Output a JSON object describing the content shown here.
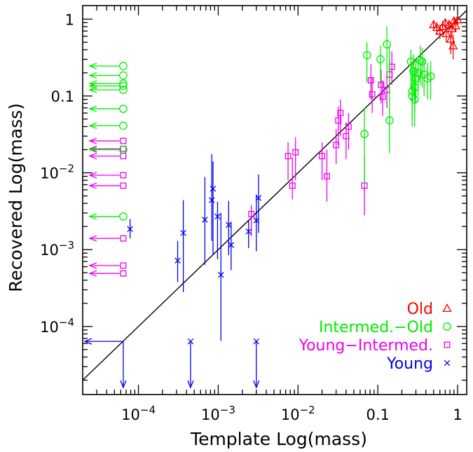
{
  "chart_data": {
    "type": "scatter",
    "xlabel": "Template Log(mass)",
    "ylabel": "Recovered Log(mass)",
    "xscale": "log",
    "yscale": "log",
    "xlim": [
      2e-05,
      1.3
    ],
    "ylim": [
      1.3e-05,
      1.5
    ],
    "grid": false,
    "diagonal_line": "y = x",
    "x_tick_labels": [
      {
        "value": 0.0001,
        "base": "10",
        "exp": "−4"
      },
      {
        "value": 0.001,
        "base": "10",
        "exp": "−3"
      },
      {
        "value": 0.01,
        "base": "10",
        "exp": "−2"
      },
      {
        "value": 0.1,
        "text": "0.1"
      },
      {
        "value": 1,
        "text": "1"
      }
    ],
    "y_tick_labels": [
      {
        "value": 0.0001,
        "base": "10",
        "exp": "−4"
      },
      {
        "value": 0.001,
        "base": "10",
        "exp": "−3"
      },
      {
        "value": 0.01,
        "base": "10",
        "exp": "−2"
      },
      {
        "value": 0.1,
        "text": "0.1"
      },
      {
        "value": 1,
        "text": "1"
      }
    ],
    "legend_position": "bottom-right",
    "series": [
      {
        "name": "Old",
        "marker": "triangle",
        "color": "#ff0000",
        "points": [
          {
            "x": 0.5,
            "y": 0.85,
            "ylo": 0.72,
            "yhi": 0.98
          },
          {
            "x": 0.55,
            "y": 0.78,
            "ylo": 0.62,
            "yhi": 0.92
          },
          {
            "x": 0.6,
            "y": 0.7,
            "ylo": 0.55,
            "yhi": 0.85
          },
          {
            "x": 0.65,
            "y": 0.8,
            "ylo": 0.66,
            "yhi": 0.95
          },
          {
            "x": 0.7,
            "y": 0.9,
            "ylo": 0.76,
            "yhi": 1.0
          },
          {
            "x": 0.72,
            "y": 0.65,
            "ylo": 0.5,
            "yhi": 0.8
          },
          {
            "x": 0.78,
            "y": 0.85,
            "ylo": 0.7,
            "yhi": 0.98
          },
          {
            "x": 0.82,
            "y": 0.55,
            "ylo": 0.35,
            "yhi": 0.7
          },
          {
            "x": 0.85,
            "y": 0.75,
            "ylo": 0.6,
            "yhi": 0.9
          },
          {
            "x": 0.88,
            "y": 0.45,
            "ylo": 0.3,
            "yhi": 0.62
          },
          {
            "x": 0.9,
            "y": 0.95,
            "ylo": 0.8,
            "yhi": 1.05
          },
          {
            "x": 0.95,
            "y": 0.82,
            "ylo": 0.68,
            "yhi": 0.96
          },
          {
            "x": 1.0,
            "y": 0.98,
            "ylo": 0.85,
            "yhi": 1.08
          }
        ],
        "upper_limits": []
      },
      {
        "name": "Intermed.−Old",
        "marker": "circle",
        "color": "#00ee00",
        "points": [
          {
            "x": 0.068,
            "y": 0.032,
            "ylo": 0.0068,
            "yhi": 0.07
          },
          {
            "x": 0.073,
            "y": 0.34,
            "ylo": 0.15,
            "yhi": 0.5
          },
          {
            "x": 0.108,
            "y": 0.3,
            "ylo": 0.14,
            "yhi": 0.45
          },
          {
            "x": 0.13,
            "y": 0.47,
            "ylo": 0.2,
            "yhi": 0.8
          },
          {
            "x": 0.14,
            "y": 0.048,
            "ylo": 0.018,
            "yhi": 0.45
          },
          {
            "x": 0.26,
            "y": 0.28,
            "ylo": 0.12,
            "yhi": 0.4
          },
          {
            "x": 0.27,
            "y": 0.115,
            "ylo": 0.05,
            "yhi": 0.28
          },
          {
            "x": 0.28,
            "y": 0.21,
            "ylo": 0.1,
            "yhi": 0.35
          },
          {
            "x": 0.29,
            "y": 0.09,
            "ylo": 0.04,
            "yhi": 0.2
          },
          {
            "x": 0.3,
            "y": 0.17,
            "ylo": 0.08,
            "yhi": 0.3
          },
          {
            "x": 0.32,
            "y": 0.2,
            "ylo": 0.1,
            "yhi": 0.3
          },
          {
            "x": 0.34,
            "y": 0.29,
            "ylo": 0.14,
            "yhi": 0.45
          },
          {
            "x": 0.36,
            "y": 0.28,
            "ylo": 0.13,
            "yhi": 0.42
          },
          {
            "x": 0.38,
            "y": 0.19,
            "ylo": 0.1,
            "yhi": 0.3
          },
          {
            "x": 0.42,
            "y": 0.17,
            "ylo": 0.09,
            "yhi": 0.27
          },
          {
            "x": 0.46,
            "y": 0.18,
            "ylo": 0.09,
            "yhi": 0.28
          },
          {
            "x": 0.27,
            "y": 0.1,
            "ylo": 0.04,
            "yhi": 0.22
          },
          {
            "x": 0.29,
            "y": 0.13,
            "ylo": 0.06,
            "yhi": 0.23
          }
        ],
        "upper_limits": [
          {
            "x": 6.45e-05,
            "y": 0.245
          },
          {
            "x": 6.45e-05,
            "y": 0.185
          },
          {
            "x": 6.45e-05,
            "y": 0.145
          },
          {
            "x": 6.45e-05,
            "y": 0.135
          },
          {
            "x": 6.45e-05,
            "y": 0.12
          },
          {
            "x": 6.45e-05,
            "y": 0.068
          },
          {
            "x": 6.45e-05,
            "y": 0.041
          },
          {
            "x": 6.45e-05,
            "y": 0.02
          },
          {
            "x": 6.45e-05,
            "y": 0.0027
          }
        ]
      },
      {
        "name": "Young−Intermed.",
        "marker": "square",
        "color": "#ee00ee",
        "points": [
          {
            "x": 0.0026,
            "y": 0.0029,
            "ylo": 0.0015,
            "yhi": 0.0038
          },
          {
            "x": 0.0075,
            "y": 0.0165,
            "ylo": 0.008,
            "yhi": 0.025
          },
          {
            "x": 0.0085,
            "y": 0.0068,
            "ylo": 0.0045,
            "yhi": 0.016
          },
          {
            "x": 0.0093,
            "y": 0.0185,
            "ylo": 0.008,
            "yhi": 0.029
          },
          {
            "x": 0.02,
            "y": 0.0165,
            "ylo": 0.008,
            "yhi": 0.025
          },
          {
            "x": 0.023,
            "y": 0.009,
            "ylo": 0.0042,
            "yhi": 0.02
          },
          {
            "x": 0.03,
            "y": 0.023,
            "ylo": 0.013,
            "yhi": 0.037
          },
          {
            "x": 0.032,
            "y": 0.048,
            "ylo": 0.023,
            "yhi": 0.073
          },
          {
            "x": 0.034,
            "y": 0.06,
            "ylo": 0.03,
            "yhi": 0.09
          },
          {
            "x": 0.04,
            "y": 0.03,
            "ylo": 0.015,
            "yhi": 0.045
          },
          {
            "x": 0.043,
            "y": 0.04,
            "ylo": 0.02,
            "yhi": 0.06
          },
          {
            "x": 0.068,
            "y": 0.0068,
            "ylo": 0.0028,
            "yhi": 0.016
          },
          {
            "x": 0.082,
            "y": 0.16,
            "ylo": 0.09,
            "yhi": 0.26
          },
          {
            "x": 0.085,
            "y": 0.105,
            "ylo": 0.06,
            "yhi": 0.17
          },
          {
            "x": 0.11,
            "y": 0.14,
            "ylo": 0.08,
            "yhi": 0.22
          },
          {
            "x": 0.115,
            "y": 0.098,
            "ylo": 0.055,
            "yhi": 0.16
          },
          {
            "x": 0.14,
            "y": 0.19,
            "ylo": 0.11,
            "yhi": 0.3
          },
          {
            "x": 0.15,
            "y": 0.24,
            "ylo": 0.14,
            "yhi": 0.38
          },
          {
            "x": 0.13,
            "y": 0.12,
            "ylo": 0.07,
            "yhi": 0.19
          }
        ],
        "upper_limits": [
          {
            "x": 6.45e-05,
            "y": 0.026
          },
          {
            "x": 6.45e-05,
            "y": 0.0205
          },
          {
            "x": 6.45e-05,
            "y": 0.0165
          },
          {
            "x": 6.45e-05,
            "y": 0.0093
          },
          {
            "x": 6.45e-05,
            "y": 0.0068
          },
          {
            "x": 6.45e-05,
            "y": 0.0014
          },
          {
            "x": 6.45e-05,
            "y": 0.00062
          },
          {
            "x": 6.45e-05,
            "y": 0.00049
          }
        ]
      },
      {
        "name": "Young",
        "marker": "cross",
        "color": "#0000ee",
        "points": [
          {
            "x": 7.85e-05,
            "y": 0.00185,
            "ylo": 0.0014,
            "yhi": 0.0025
          },
          {
            "x": 0.00031,
            "y": 0.00072,
            "ylo": 0.00038,
            "yhi": 0.0013
          },
          {
            "x": 0.000365,
            "y": 0.00165,
            "ylo": 0.00028,
            "yhi": 0.0044
          },
          {
            "x": 0.00068,
            "y": 0.00245,
            "ylo": 0.00063,
            "yhi": 0.0088
          },
          {
            "x": 0.00083,
            "y": 0.0044,
            "ylo": 0.0013,
            "yhi": 0.0175
          },
          {
            "x": 0.00086,
            "y": 0.0062,
            "ylo": 0.00085,
            "yhi": 0.014
          },
          {
            "x": 0.00098,
            "y": 0.0027,
            "ylo": 0.00075,
            "yhi": 0.0042
          },
          {
            "x": 0.00108,
            "y": 0.00047,
            "ylo": 6.5e-05,
            "yhi": 0.003
          },
          {
            "x": 0.00135,
            "y": 0.0021,
            "ylo": 0.00085,
            "yhi": 0.0043
          },
          {
            "x": 0.00145,
            "y": 0.00115,
            "ylo": 0.00054,
            "yhi": 0.0023
          },
          {
            "x": 0.0024,
            "y": 0.00172,
            "ylo": 0.00105,
            "yhi": 0.0024
          },
          {
            "x": 0.003,
            "y": 0.0024,
            "ylo": 0.00095,
            "yhi": 0.0052
          },
          {
            "x": 0.0032,
            "y": 0.0047,
            "ylo": 0.00165,
            "yhi": 0.0095
          }
        ],
        "upper_limits": [
          {
            "x": 0.00045,
            "y": 6.4e-05
          },
          {
            "x": 0.003,
            "y": 6.4e-05
          },
          {
            "x": 6.45e-05,
            "y": 6.4e-05
          }
        ]
      }
    ]
  }
}
